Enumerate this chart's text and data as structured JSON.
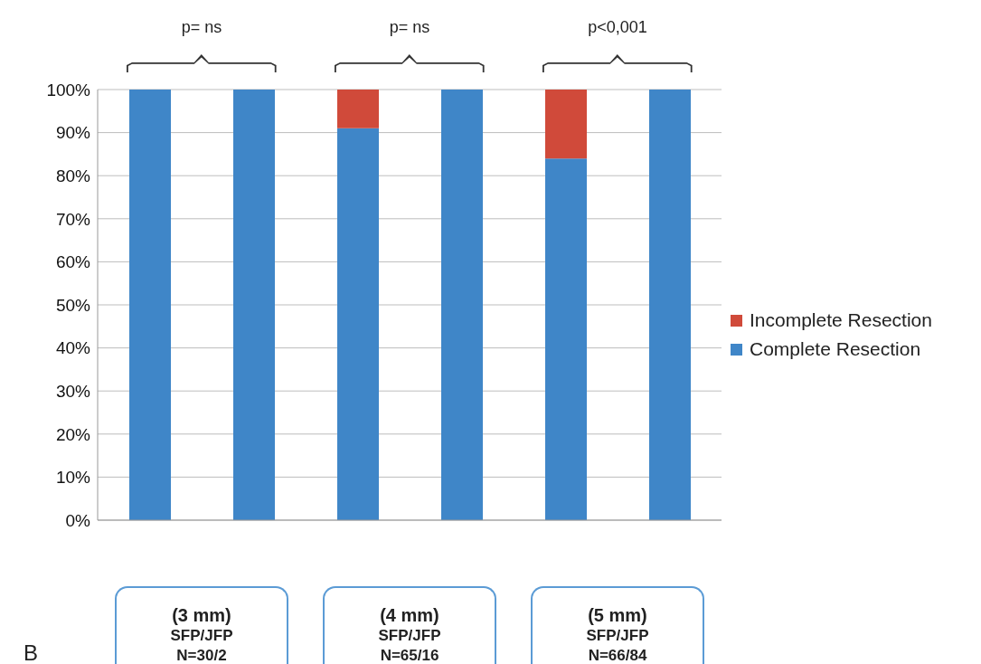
{
  "chart_data": {
    "type": "bar",
    "stacked": true,
    "categories": [
      null,
      null,
      null,
      null,
      null,
      null
    ],
    "series": [
      {
        "name": "Complete Resection",
        "color": "#3f86c8",
        "values": [
          100,
          100,
          91,
          100,
          84,
          100
        ]
      },
      {
        "name": "Incomplete Resection",
        "color": "#d04a3a",
        "values": [
          0,
          0,
          9,
          0,
          16,
          0
        ]
      }
    ],
    "ylim": [
      0,
      100
    ],
    "yticks": [
      {
        "value": 0,
        "label": "0%"
      },
      {
        "value": 10,
        "label": "10%"
      },
      {
        "value": 20,
        "label": "20%"
      },
      {
        "value": 30,
        "label": "30%"
      },
      {
        "value": 40,
        "label": "40%"
      },
      {
        "value": 50,
        "label": "50%"
      },
      {
        "value": 60,
        "label": "60%"
      },
      {
        "value": 70,
        "label": "70%"
      },
      {
        "value": 80,
        "label": "80%"
      },
      {
        "value": 90,
        "label": "90%"
      },
      {
        "value": 100,
        "label": "100%"
      }
    ],
    "grid": "y",
    "legend": "right",
    "annotations": [
      "p= ns",
      "p= ns",
      "p<0,001",
      "(3 mm)\nSFP/JFP\nN=30/2",
      "(4 mm)\nSFP/JFP\nN=65/16",
      "(5 mm)\nSFP/JFP\nN=66/84",
      "B"
    ]
  }
}
